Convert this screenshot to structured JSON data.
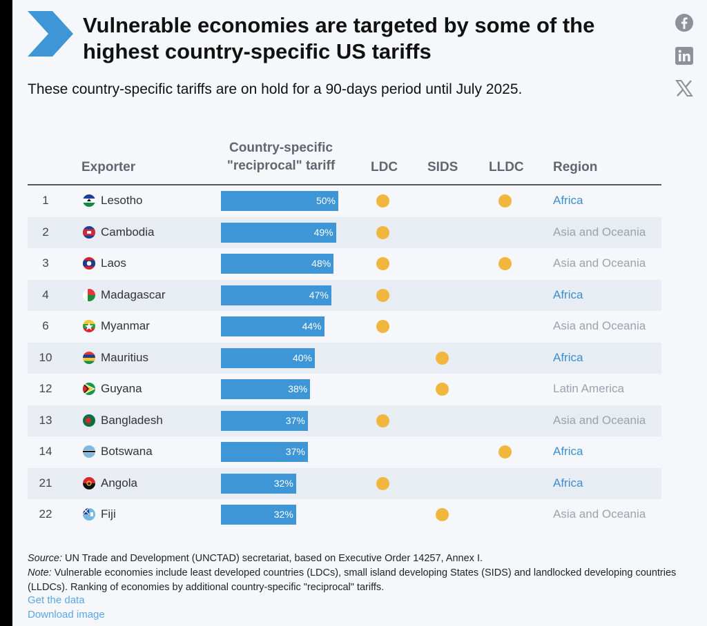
{
  "header": {
    "title": "Vulnerable economies are targeted by some of the highest country-specific US tariffs",
    "subtitle": "These country-specific tariffs are on hold for a 90-days period until July 2025."
  },
  "share_icons": [
    "facebook-icon",
    "linkedin-icon",
    "x-icon"
  ],
  "columns": {
    "exporter": "Exporter",
    "tariff": "Country-specific \"reciprocal\" tariff",
    "ldc": "LDC",
    "sids": "SIDS",
    "lldc": "LLDC",
    "region": "Region"
  },
  "colors": {
    "bar": "#3e96d6",
    "dot": "#f0b63e",
    "region_africa": "#3a8fd0",
    "region_other": "#9aa3ad"
  },
  "chart_data": {
    "type": "table",
    "title": "Vulnerable economies are targeted by some of the highest country-specific US tariffs",
    "subtitle": "These country-specific tariffs are on hold for a 90-days period until July 2025.",
    "max_tariff": 50,
    "rows": [
      {
        "rank": "1",
        "country": "Lesotho",
        "tariff": 50,
        "tariff_label": "50%",
        "ldc": true,
        "sids": false,
        "lldc": true,
        "region": "Africa"
      },
      {
        "rank": "2",
        "country": "Cambodia",
        "tariff": 49,
        "tariff_label": "49%",
        "ldc": true,
        "sids": false,
        "lldc": false,
        "region": "Asia and Oceania"
      },
      {
        "rank": "3",
        "country": "Laos",
        "tariff": 48,
        "tariff_label": "48%",
        "ldc": true,
        "sids": false,
        "lldc": true,
        "region": "Asia and Oceania"
      },
      {
        "rank": "4",
        "country": "Madagascar",
        "tariff": 47,
        "tariff_label": "47%",
        "ldc": true,
        "sids": false,
        "lldc": false,
        "region": "Africa"
      },
      {
        "rank": "6",
        "country": "Myanmar",
        "tariff": 44,
        "tariff_label": "44%",
        "ldc": true,
        "sids": false,
        "lldc": false,
        "region": "Asia and Oceania"
      },
      {
        "rank": "10",
        "country": "Mauritius",
        "tariff": 40,
        "tariff_label": "40%",
        "ldc": false,
        "sids": true,
        "lldc": false,
        "region": "Africa"
      },
      {
        "rank": "12",
        "country": "Guyana",
        "tariff": 38,
        "tariff_label": "38%",
        "ldc": false,
        "sids": true,
        "lldc": false,
        "region": "Latin America"
      },
      {
        "rank": "13",
        "country": "Bangladesh",
        "tariff": 37,
        "tariff_label": "37%",
        "ldc": true,
        "sids": false,
        "lldc": false,
        "region": "Asia and Oceania"
      },
      {
        "rank": "14",
        "country": "Botswana",
        "tariff": 37,
        "tariff_label": "37%",
        "ldc": false,
        "sids": false,
        "lldc": true,
        "region": "Africa"
      },
      {
        "rank": "21",
        "country": "Angola",
        "tariff": 32,
        "tariff_label": "32%",
        "ldc": true,
        "sids": false,
        "lldc": false,
        "region": "Africa"
      },
      {
        "rank": "22",
        "country": "Fiji",
        "tariff": 32,
        "tariff_label": "32%",
        "ldc": false,
        "sids": true,
        "lldc": false,
        "region": "Asia and Oceania"
      }
    ]
  },
  "footer": {
    "source_label": "Source:",
    "source_text": "UN Trade and Development (UNCTAD) secretariat, based on Executive Order 14257, Annex I.",
    "note_label": "Note:",
    "note_text": "Vulnerable economies include least developed countries (LDCs), small island developing States (SIDS) and landlocked developing countries (LLDCs). Ranking of economies by additional country-specific \"reciprocal\" tariffs.",
    "link_get_data": "Get the data",
    "link_download": "Download image"
  }
}
